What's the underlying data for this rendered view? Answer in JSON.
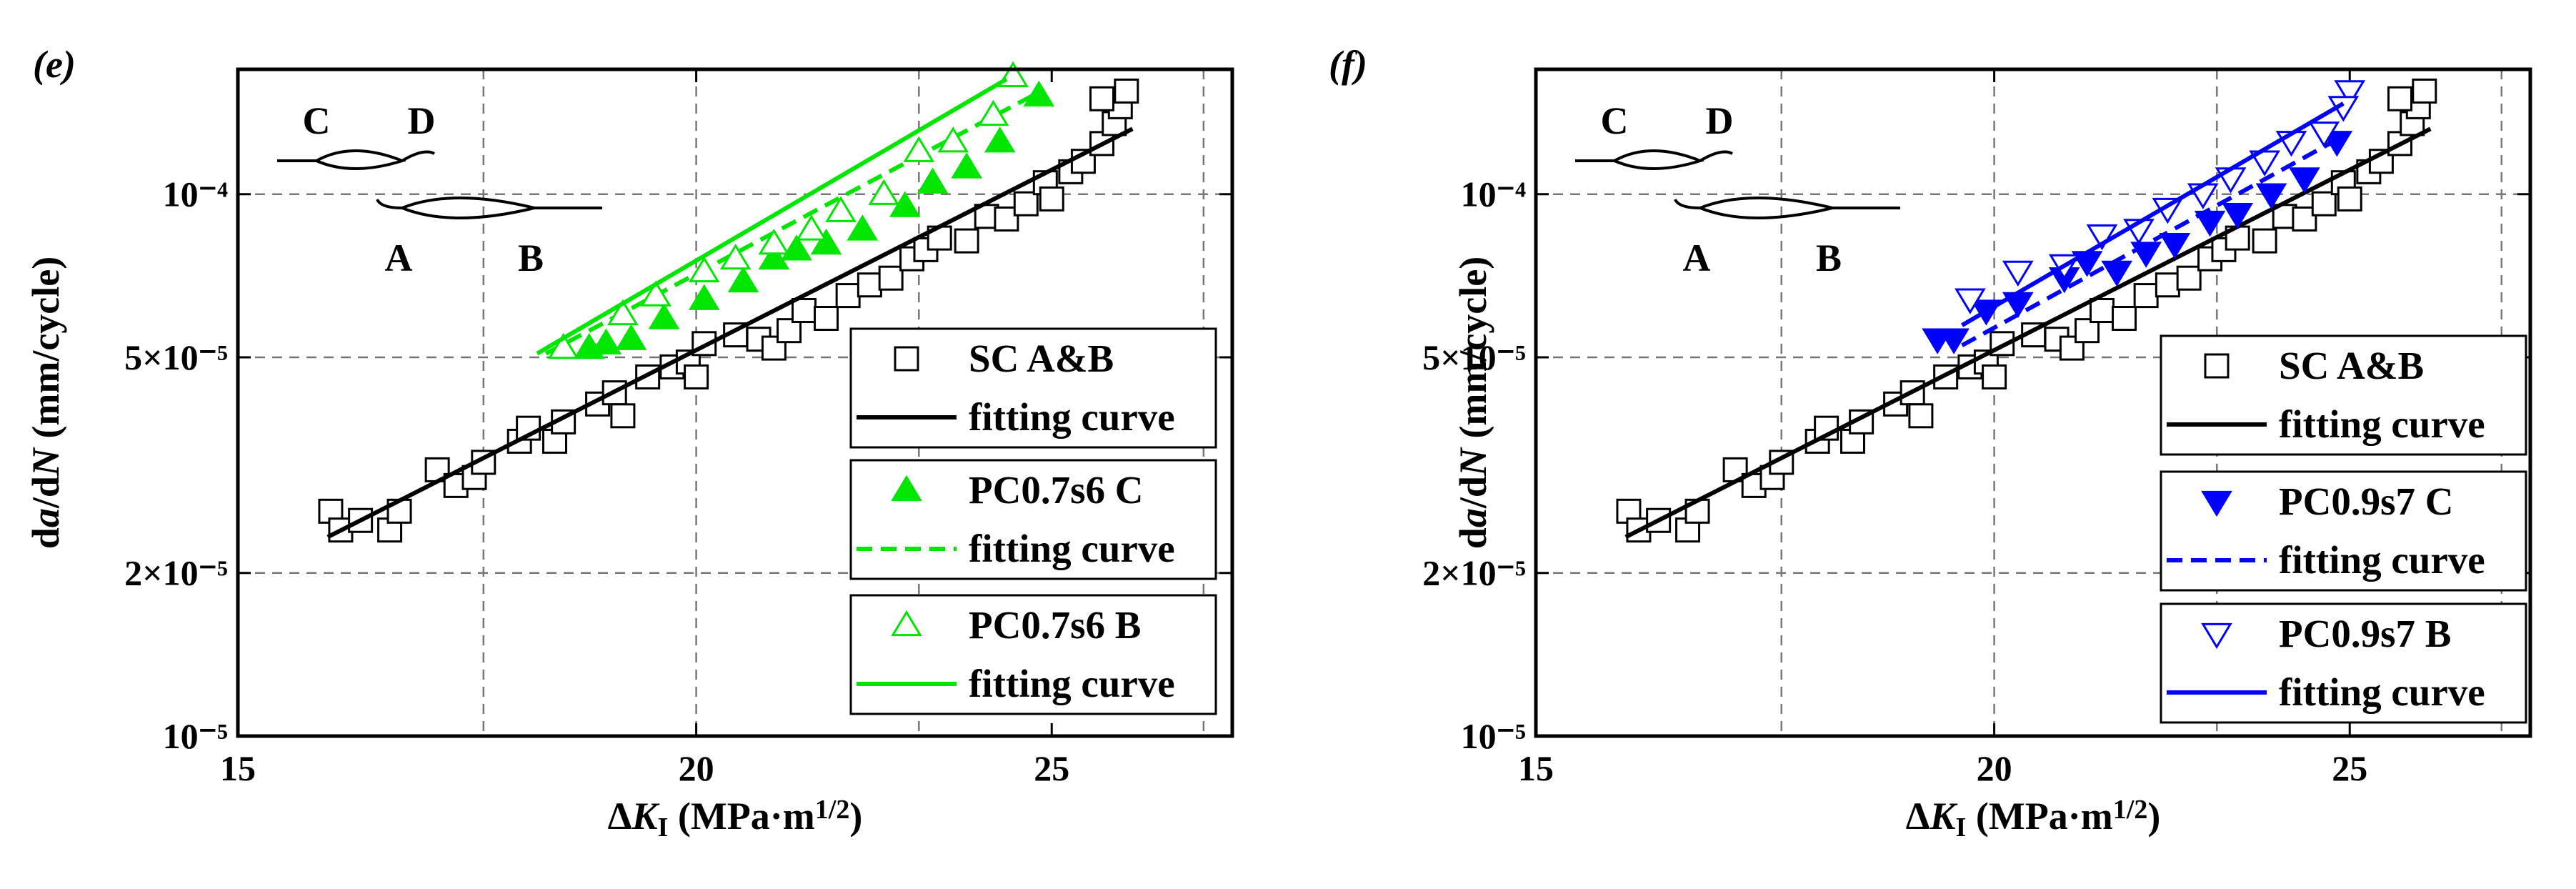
{
  "chart_data": [
    {
      "type": "scatter",
      "panel": "(e)",
      "xscale": "log",
      "yscale": "log",
      "xlabel": [
        "Δ",
        "K",
        "I",
        " (MPa·m",
        "1/2",
        ")"
      ],
      "ylabel": [
        "d",
        "a",
        "/d",
        "N",
        " (mm/cycle)"
      ],
      "xlim": [
        15,
        28
      ],
      "xticks": [
        15,
        20,
        25
      ],
      "xgrid": [
        17.5,
        20,
        23,
        27.5
      ],
      "ylim": [
        1e-05,
        0.00017
      ],
      "yticks": [
        {
          "value": 1e-05,
          "label": "10⁻⁵"
        },
        {
          "value": 2e-05,
          "label": "2×10⁻⁵"
        },
        {
          "value": 5e-05,
          "label": "5×10⁻⁵"
        },
        {
          "value": 0.0001,
          "label": "10⁻⁴"
        }
      ],
      "grid": true,
      "legend": "lower right",
      "inset_labels": [
        "C",
        "D",
        "A",
        "B"
      ],
      "series": [
        {
          "name": "SC A&B",
          "marker": "square",
          "filled": false,
          "color": "#000000",
          "x": [
            15.9,
            16.0,
            16.2,
            16.5,
            16.6,
            17.0,
            17.2,
            17.4,
            17.5,
            17.9,
            18.0,
            18.3,
            18.4,
            18.8,
            19.0,
            19.1,
            19.4,
            19.7,
            19.9,
            20.0,
            20.1,
            20.5,
            20.8,
            21.0,
            21.2,
            21.4,
            21.7,
            22.0,
            22.3,
            22.6,
            22.9,
            23.1,
            23.3,
            23.7,
            24.0,
            24.3,
            24.6,
            24.9,
            25.0,
            25.3,
            25.5,
            25.8,
            26.0,
            26.1,
            26.2,
            25.8
          ],
          "values": [
            2.6e-05,
            2.4e-05,
            2.5e-05,
            2.4e-05,
            2.6e-05,
            3.1e-05,
            2.9e-05,
            3e-05,
            3.2e-05,
            3.5e-05,
            3.7e-05,
            3.5e-05,
            3.8e-05,
            4.1e-05,
            4.3e-05,
            3.9e-05,
            4.6e-05,
            4.8e-05,
            4.9e-05,
            4.6e-05,
            5.3e-05,
            5.5e-05,
            5.4e-05,
            5.2e-05,
            5.6e-05,
            6.1e-05,
            5.9e-05,
            6.5e-05,
            6.8e-05,
            7e-05,
            7.6e-05,
            7.9e-05,
            8.3e-05,
            8.2e-05,
            9.1e-05,
            9e-05,
            9.6e-05,
            0.000105,
            9.8e-05,
            0.00011,
            0.000115,
            0.000124,
            0.000135,
            0.000145,
            0.000155,
            0.00015
          ]
        },
        {
          "name": "fitting curve",
          "marker": "line",
          "dash": false,
          "color": "#000000",
          "x": [
            15.87,
            26.3
          ],
          "values": [
            2.33e-05,
            0.000132
          ]
        },
        {
          "name": "PC0.7s6 C",
          "marker": "triangle-up",
          "filled": true,
          "color": "#00e600",
          "x": [
            18.7,
            18.9,
            19.2,
            19.6,
            20.1,
            20.6,
            21.0,
            21.3,
            21.7,
            22.2,
            22.8,
            23.2,
            23.7,
            24.2,
            24.8
          ],
          "values": [
            5.2e-05,
            5.3e-05,
            5.4e-05,
            5.9e-05,
            6.4e-05,
            6.9e-05,
            7.6e-05,
            7.9e-05,
            8.1e-05,
            8.6e-05,
            9.5e-05,
            0.000105,
            0.000112,
            0.000125,
            0.000152
          ]
        },
        {
          "name": "fitting curve",
          "marker": "line",
          "dash": true,
          "color": "#00e600",
          "x": [
            18.2,
            24.7
          ],
          "values": [
            5.08e-05,
            0.000152
          ]
        },
        {
          "name": "PC0.7s6 B",
          "marker": "triangle-up",
          "filled": false,
          "color": "#00e600",
          "x": [
            18.4,
            19.1,
            19.5,
            20.1,
            20.5,
            21.0,
            21.5,
            21.9,
            22.5,
            23.0,
            23.5,
            24.1,
            24.4
          ],
          "values": [
            5.2e-05,
            6e-05,
            6.5e-05,
            7.2e-05,
            7.6e-05,
            8.1e-05,
            8.6e-05,
            9.3e-05,
            0.0001,
            0.00012,
            0.000125,
            0.00014,
            0.000165
          ]
        },
        {
          "name": "fitting curve",
          "marker": "line",
          "dash": false,
          "color": "#00e600",
          "x": [
            18.1,
            24.3
          ],
          "values": [
            5.08e-05,
            0.000163
          ]
        }
      ]
    },
    {
      "type": "scatter",
      "panel": "(f)",
      "xscale": "log",
      "yscale": "log",
      "xlabel": [
        "Δ",
        "K",
        "I",
        " (MPa·m",
        "1/2",
        ")"
      ],
      "ylabel": [
        "d",
        "a",
        "/d",
        "N",
        " (mm/cycle)"
      ],
      "xlim": [
        15,
        28
      ],
      "xticks": [
        15,
        20,
        25
      ],
      "xgrid": [
        17.5,
        20,
        23,
        27.5
      ],
      "ylim": [
        1e-05,
        0.00017
      ],
      "yticks": [
        {
          "value": 1e-05,
          "label": "10⁻⁵"
        },
        {
          "value": 2e-05,
          "label": "2×10⁻⁵"
        },
        {
          "value": 5e-05,
          "label": "5×10⁻⁵"
        },
        {
          "value": 0.0001,
          "label": "10⁻⁴"
        }
      ],
      "grid": true,
      "legend": "lower right",
      "inset_labels": [
        "C",
        "D",
        "A",
        "B"
      ],
      "series": [
        {
          "name": "SC A&B",
          "marker": "square",
          "filled": false,
          "color": "#000000",
          "x": [
            15.9,
            16.0,
            16.2,
            16.5,
            16.6,
            17.0,
            17.2,
            17.4,
            17.5,
            17.9,
            18.0,
            18.3,
            18.4,
            18.8,
            19.0,
            19.1,
            19.4,
            19.7,
            19.9,
            20.0,
            20.1,
            20.5,
            20.8,
            21.0,
            21.2,
            21.4,
            21.7,
            22.0,
            22.3,
            22.6,
            22.9,
            23.1,
            23.3,
            23.7,
            24.0,
            24.3,
            24.6,
            24.9,
            25.0,
            25.3,
            25.5,
            25.8,
            26.0,
            26.1,
            26.2,
            25.8
          ],
          "values": [
            2.6e-05,
            2.4e-05,
            2.5e-05,
            2.4e-05,
            2.6e-05,
            3.1e-05,
            2.9e-05,
            3e-05,
            3.2e-05,
            3.5e-05,
            3.7e-05,
            3.5e-05,
            3.8e-05,
            4.1e-05,
            4.3e-05,
            3.9e-05,
            4.6e-05,
            4.8e-05,
            4.9e-05,
            4.6e-05,
            5.3e-05,
            5.5e-05,
            5.4e-05,
            5.2e-05,
            5.6e-05,
            6.1e-05,
            5.9e-05,
            6.5e-05,
            6.8e-05,
            7e-05,
            7.6e-05,
            7.9e-05,
            8.3e-05,
            8.2e-05,
            9.1e-05,
            9e-05,
            9.6e-05,
            0.000105,
            9.8e-05,
            0.00011,
            0.000115,
            0.000124,
            0.000135,
            0.000145,
            0.000155,
            0.00015
          ]
        },
        {
          "name": "fitting curve",
          "marker": "line",
          "dash": false,
          "color": "#000000",
          "x": [
            15.87,
            26.3
          ],
          "values": [
            2.33e-05,
            0.000132
          ]
        },
        {
          "name": "PC0.9s7 C",
          "marker": "triangle-down",
          "filled": true,
          "color": "#0000ff",
          "x": [
            19.3,
            19.5,
            19.9,
            20.3,
            20.9,
            21.2,
            21.6,
            22.0,
            22.4,
            22.9,
            23.3,
            23.8,
            24.3,
            24.8
          ],
          "values": [
            5.4e-05,
            5.4e-05,
            6.1e-05,
            6.3e-05,
            7e-05,
            7.5e-05,
            7.2e-05,
            7.8e-05,
            8.1e-05,
            8.9e-05,
            9.2e-05,
            0.0001,
            0.000107,
            0.000125
          ]
        },
        {
          "name": "fitting curve",
          "marker": "line",
          "dash": true,
          "color": "#0000ff",
          "x": [
            19.6,
            24.9
          ],
          "values": [
            5.26e-05,
            0.000128
          ]
        },
        {
          "name": "PC0.9s7 B",
          "marker": "triangle-down",
          "filled": false,
          "color": "#0000ff",
          "x": [
            19.7,
            20.3,
            20.9,
            21.4,
            21.9,
            22.3,
            22.8,
            23.2,
            23.7,
            24.1,
            24.6,
            25.0,
            24.9
          ],
          "values": [
            6.4e-05,
            7.2e-05,
            7.4e-05,
            8.4e-05,
            8.6e-05,
            9.4e-05,
            0.0001,
            0.000107,
            0.000115,
            0.000125,
            0.00013,
            0.000155,
            0.000145
          ]
        },
        {
          "name": "fitting curve",
          "marker": "line",
          "dash": false,
          "color": "#0000ff",
          "x": [
            19.6,
            24.9
          ],
          "values": [
            5.73e-05,
            0.000147
          ]
        }
      ]
    }
  ]
}
